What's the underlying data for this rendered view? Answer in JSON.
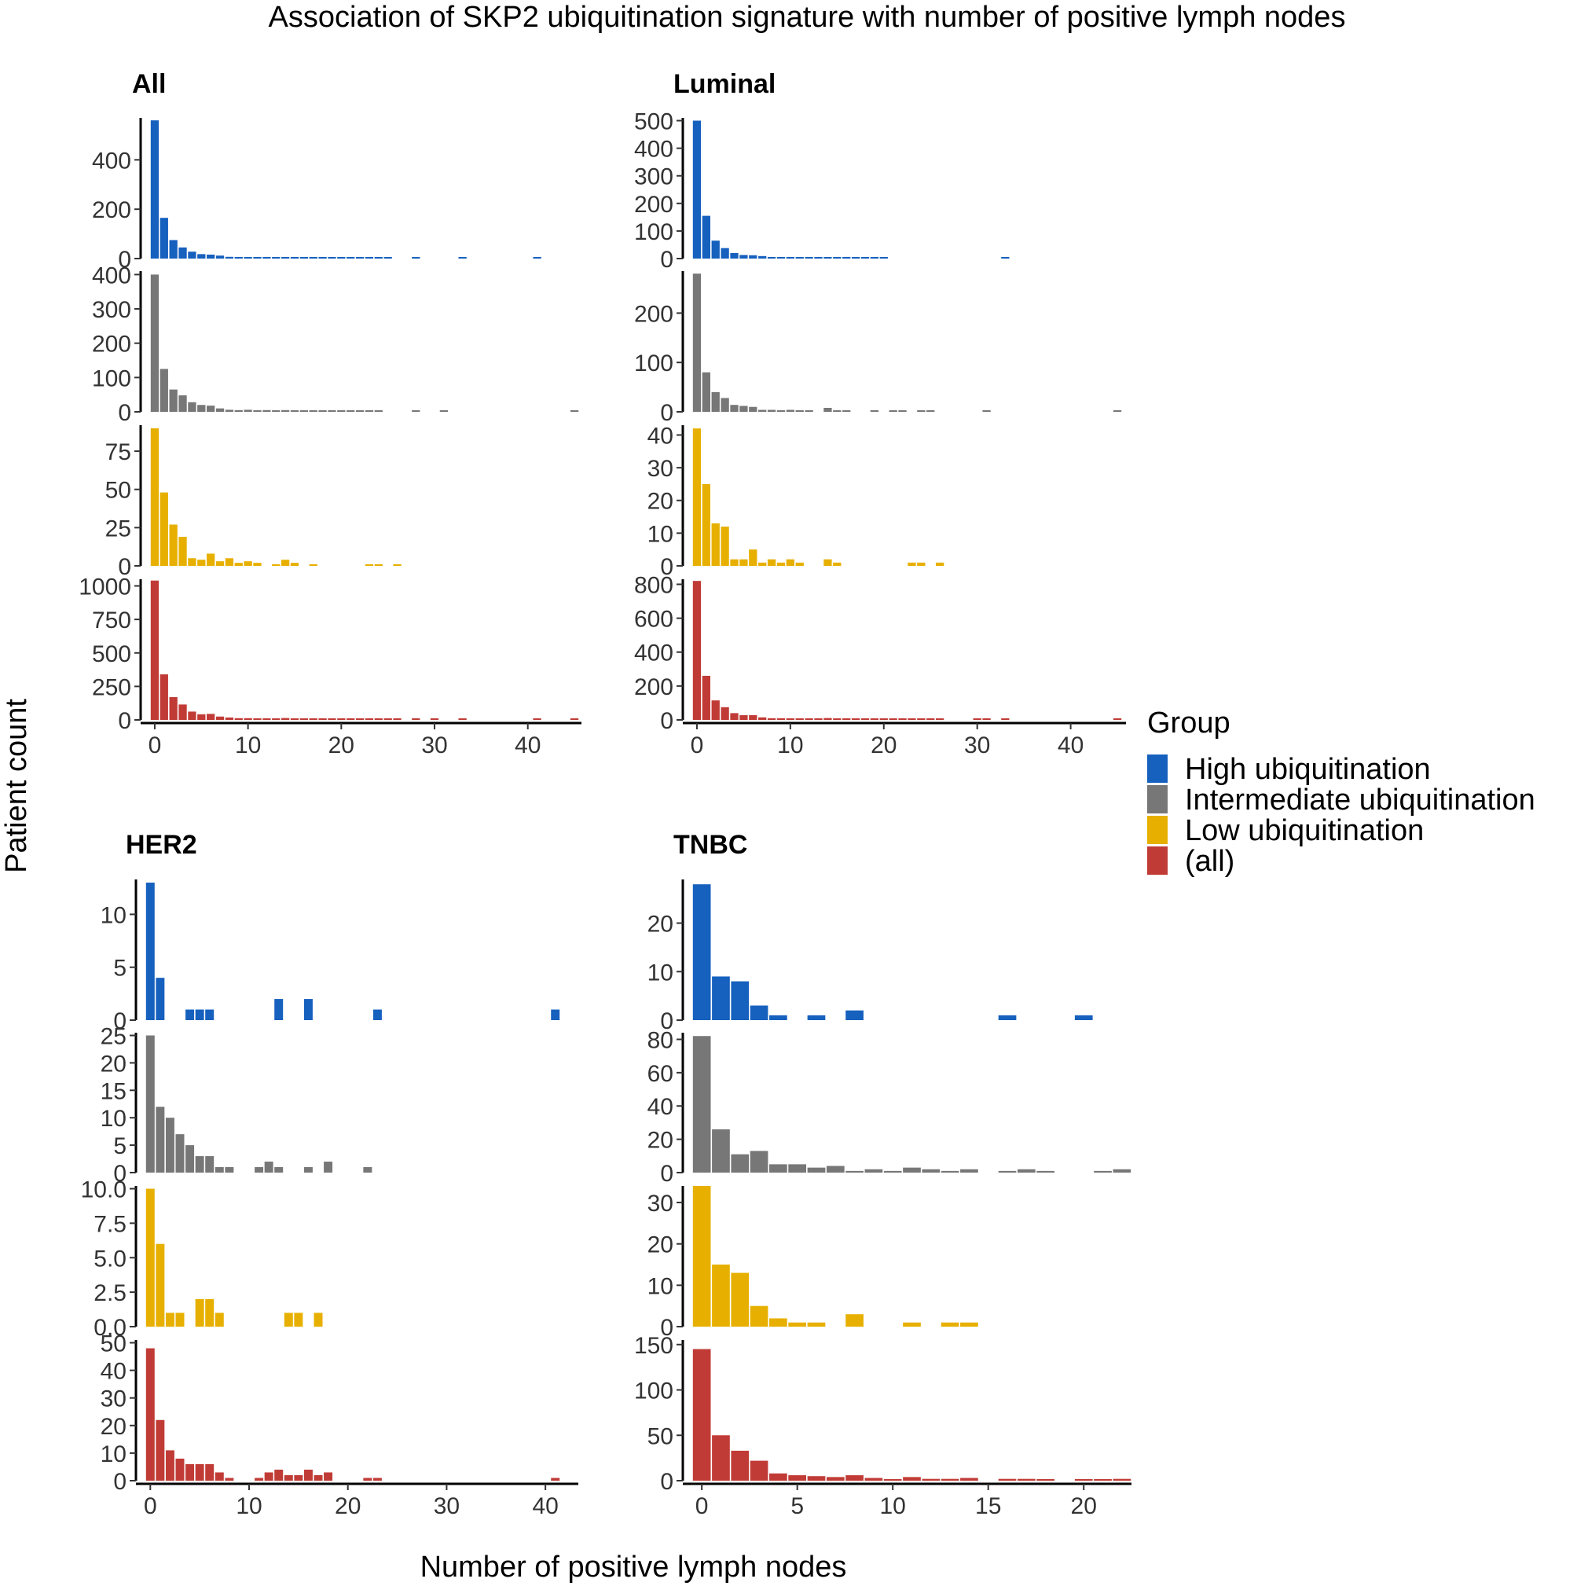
{
  "chart_data": {
    "type": "bar",
    "title": "Association of SKP2 ubiquitination signature with number of positive lymph nodes",
    "xlabel": "Number of positive lymph nodes",
    "ylabel": "Patient count",
    "legend": {
      "title": "Group",
      "placement": "right",
      "items": [
        {
          "label": "High ubiquitination",
          "color": "#1660BE"
        },
        {
          "label": "Intermediate ubiquitination",
          "color": "#777777"
        },
        {
          "label": "Low ubiquitination",
          "color": "#E7B000"
        },
        {
          "label": "(all)",
          "color": "#C13B36"
        }
      ]
    },
    "panels": [
      {
        "title": "All",
        "xlim": [
          0,
          45
        ],
        "xticks": [
          "0",
          "10",
          "20",
          "30",
          "40"
        ],
        "xtick_values": [
          0,
          10,
          20,
          30,
          40
        ],
        "rows": [
          {
            "group": "High ubiquitination",
            "color": "#1660BE",
            "ymax": 570,
            "yticks": [
              0,
              200,
              400
            ],
            "x": [
              0,
              1,
              2,
              3,
              4,
              5,
              6,
              7,
              8,
              9,
              10,
              11,
              12,
              13,
              14,
              15,
              16,
              17,
              18,
              19,
              20,
              21,
              22,
              23,
              24,
              25,
              28,
              33,
              41
            ],
            "y": [
              560,
              165,
              75,
              45,
              28,
              18,
              16,
              12,
              7,
              6,
              5,
              4,
              3,
              3,
              3,
              3,
              5,
              2,
              2,
              2,
              2,
              2,
              1,
              1,
              1,
              1,
              1,
              1,
              1
            ]
          },
          {
            "group": "Intermediate ubiquitination",
            "color": "#777777",
            "ymax": 410,
            "yticks": [
              0,
              100,
              200,
              300,
              400
            ],
            "x": [
              0,
              1,
              2,
              3,
              4,
              5,
              6,
              7,
              8,
              9,
              10,
              11,
              12,
              13,
              14,
              15,
              16,
              17,
              18,
              19,
              20,
              21,
              22,
              23,
              24,
              28,
              31,
              45
            ],
            "y": [
              400,
              125,
              65,
              48,
              28,
              20,
              18,
              10,
              6,
              5,
              6,
              4,
              5,
              3,
              5,
              4,
              3,
              2,
              2,
              2,
              3,
              2,
              4,
              2,
              2,
              1,
              1,
              1
            ]
          },
          {
            "group": "Low ubiquitination",
            "color": "#E7B000",
            "ymax": 92,
            "yticks": [
              0,
              25,
              50,
              75
            ],
            "x": [
              0,
              1,
              2,
              3,
              4,
              5,
              6,
              7,
              8,
              9,
              10,
              11,
              13,
              14,
              15,
              17,
              23,
              24,
              26
            ],
            "y": [
              90,
              48,
              27,
              19,
              5,
              4,
              8,
              3,
              5,
              2,
              3,
              2,
              1,
              4,
              2,
              1,
              1,
              1,
              1
            ]
          },
          {
            "group": "(all)",
            "color": "#C13B36",
            "ymax": 1050,
            "yticks": [
              0,
              250,
              500,
              750,
              1000
            ],
            "x": [
              0,
              1,
              2,
              3,
              4,
              5,
              6,
              7,
              8,
              9,
              10,
              11,
              12,
              13,
              14,
              15,
              16,
              17,
              18,
              19,
              20,
              21,
              22,
              23,
              24,
              25,
              26,
              28,
              30,
              33,
              41,
              45
            ],
            "y": [
              1040,
              340,
              170,
              115,
              62,
              42,
              45,
              25,
              18,
              13,
              13,
              10,
              8,
              8,
              14,
              8,
              8,
              5,
              5,
              4,
              5,
              4,
              5,
              4,
              4,
              3,
              3,
              2,
              2,
              2,
              2,
              2
            ]
          }
        ]
      },
      {
        "title": "Luminal",
        "xlim": [
          0,
          45
        ],
        "xticks": [
          "0",
          "10",
          "20",
          "30",
          "40"
        ],
        "xtick_values": [
          0,
          10,
          20,
          30,
          40
        ],
        "rows": [
          {
            "group": "High ubiquitination",
            "color": "#1660BE",
            "ymax": 510,
            "yticks": [
              0,
              100,
              200,
              300,
              400,
              500
            ],
            "x": [
              0,
              1,
              2,
              3,
              4,
              5,
              6,
              7,
              8,
              9,
              10,
              11,
              12,
              13,
              14,
              15,
              16,
              17,
              18,
              19,
              20,
              33
            ],
            "y": [
              500,
              155,
              65,
              38,
              20,
              13,
              12,
              9,
              5,
              5,
              4,
              3,
              3,
              3,
              3,
              2,
              2,
              2,
              3,
              2,
              2,
              1
            ]
          },
          {
            "group": "Intermediate ubiquitination",
            "color": "#777777",
            "ymax": 285,
            "yticks": [
              0,
              100,
              200
            ],
            "x": [
              0,
              1,
              2,
              3,
              4,
              5,
              6,
              7,
              8,
              9,
              10,
              11,
              12,
              14,
              15,
              16,
              19,
              21,
              22,
              24,
              25,
              31,
              45
            ],
            "y": [
              280,
              80,
              40,
              28,
              14,
              12,
              10,
              4,
              4,
              3,
              4,
              3,
              2,
              8,
              3,
              2,
              2,
              2,
              2,
              2,
              2,
              1,
              1
            ]
          },
          {
            "group": "Low ubiquitination",
            "color": "#E7B000",
            "ymax": 43,
            "yticks": [
              0,
              10,
              20,
              30,
              40
            ],
            "x": [
              0,
              1,
              2,
              3,
              4,
              5,
              6,
              7,
              8,
              9,
              10,
              11,
              14,
              15,
              23,
              24,
              26
            ],
            "y": [
              42,
              25,
              13,
              12,
              2,
              2,
              5,
              1,
              2,
              1,
              2,
              1,
              2,
              1,
              1,
              1,
              1
            ]
          },
          {
            "group": "(all)",
            "color": "#C13B36",
            "ymax": 830,
            "yticks": [
              0,
              200,
              400,
              600,
              800
            ],
            "x": [
              0,
              1,
              2,
              3,
              4,
              5,
              6,
              7,
              8,
              9,
              10,
              11,
              12,
              13,
              14,
              15,
              16,
              17,
              18,
              19,
              20,
              21,
              22,
              23,
              24,
              25,
              26,
              30,
              31,
              33,
              45
            ],
            "y": [
              820,
              260,
              115,
              75,
              40,
              28,
              28,
              15,
              10,
              10,
              9,
              7,
              6,
              6,
              11,
              8,
              6,
              5,
              4,
              4,
              5,
              4,
              4,
              3,
              3,
              3,
              3,
              2,
              2,
              2,
              2
            ]
          }
        ]
      },
      {
        "title": "HER2",
        "xlim": [
          0,
          41
        ],
        "xticks": [
          "0",
          "10",
          "20",
          "30",
          "40"
        ],
        "xtick_values": [
          0,
          10,
          20,
          30,
          40
        ],
        "rows": [
          {
            "group": "High ubiquitination",
            "color": "#1660BE",
            "ymax": 13.3,
            "yticks": [
              0,
              5,
              10
            ],
            "x": [
              0,
              1,
              4,
              5,
              6,
              13,
              16,
              23,
              41
            ],
            "y": [
              13,
              4,
              1,
              1,
              1,
              2,
              2,
              1,
              1
            ]
          },
          {
            "group": "Intermediate ubiquitination",
            "color": "#777777",
            "ymax": 25.5,
            "yticks": [
              0,
              5,
              10,
              15,
              20,
              25
            ],
            "x": [
              0,
              1,
              2,
              3,
              4,
              5,
              6,
              7,
              8,
              11,
              12,
              13,
              16,
              18,
              22
            ],
            "y": [
              25,
              12,
              10,
              7,
              5,
              3,
              3,
              1,
              1,
              1,
              2,
              1,
              1,
              2,
              1
            ]
          },
          {
            "group": "Low ubiquitination",
            "color": "#E7B000",
            "ymax": 10.2,
            "yticks": [
              0,
              2.5,
              5,
              7.5,
              10
            ],
            "ytick_labels": [
              "0.0",
              "2.5",
              "5.0",
              "7.5",
              "10.0"
            ],
            "x": [
              0,
              1,
              2,
              3,
              5,
              6,
              7,
              14,
              15,
              17
            ],
            "y": [
              10,
              6,
              1,
              1,
              2,
              2,
              1,
              1,
              1,
              1
            ]
          },
          {
            "group": "(all)",
            "color": "#C13B36",
            "ymax": 51,
            "yticks": [
              0,
              10,
              20,
              30,
              40,
              50
            ],
            "x": [
              0,
              1,
              2,
              3,
              4,
              5,
              6,
              7,
              8,
              11,
              12,
              13,
              14,
              15,
              16,
              17,
              18,
              22,
              23,
              41
            ],
            "y": [
              48,
              22,
              11,
              8,
              6,
              6,
              6,
              3,
              1,
              1,
              3,
              4,
              2,
              2,
              4,
              2,
              3,
              1,
              1,
              1
            ]
          }
        ]
      },
      {
        "title": "TNBC",
        "xlim": [
          0,
          22
        ],
        "xticks": [
          "0",
          "5",
          "10",
          "15",
          "20"
        ],
        "xtick_values": [
          0,
          5,
          10,
          15,
          20
        ],
        "rows": [
          {
            "group": "High ubiquitination",
            "color": "#1660BE",
            "ymax": 29,
            "yticks": [
              0,
              10,
              20
            ],
            "x": [
              0,
              1,
              2,
              3,
              4,
              6,
              8,
              16,
              20
            ],
            "y": [
              28,
              9,
              8,
              3,
              1,
              1,
              2,
              1,
              1
            ]
          },
          {
            "group": "Intermediate ubiquitination",
            "color": "#777777",
            "ymax": 84,
            "yticks": [
              0,
              20,
              40,
              60,
              80
            ],
            "x": [
              0,
              1,
              2,
              3,
              4,
              5,
              6,
              7,
              8,
              9,
              10,
              11,
              12,
              13,
              14,
              16,
              17,
              18,
              21,
              22
            ],
            "y": [
              82,
              26,
              11,
              13,
              5,
              5,
              3,
              4,
              1,
              2,
              1,
              3,
              2,
              1,
              2,
              1,
              2,
              1,
              1,
              2
            ]
          },
          {
            "group": "Low ubiquitination",
            "color": "#E7B000",
            "ymax": 34,
            "yticks": [
              0,
              10,
              20,
              30
            ],
            "x": [
              0,
              1,
              2,
              3,
              4,
              5,
              6,
              8,
              11,
              13,
              14
            ],
            "y": [
              34,
              15,
              13,
              5,
              2,
              1,
              1,
              3,
              1,
              1,
              1
            ]
          },
          {
            "group": "(all)",
            "color": "#C13B36",
            "ymax": 155,
            "yticks": [
              0,
              50,
              100,
              150
            ],
            "x": [
              0,
              1,
              2,
              3,
              4,
              5,
              6,
              7,
              8,
              9,
              10,
              11,
              12,
              13,
              14,
              16,
              17,
              18,
              20,
              21,
              22
            ],
            "y": [
              145,
              50,
              33,
              22,
              8,
              6,
              5,
              4,
              6,
              3,
              1,
              4,
              2,
              2,
              3,
              2,
              2,
              1,
              1,
              1,
              2
            ]
          }
        ]
      }
    ]
  }
}
